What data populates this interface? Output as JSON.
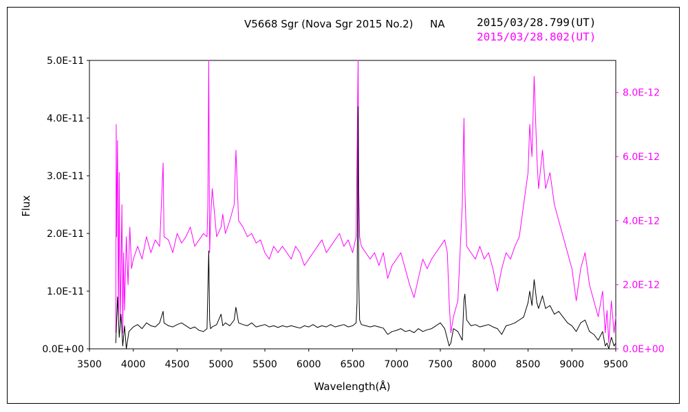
{
  "chart_data": {
    "type": "line",
    "title": "V5668 Sgr (Nova Sgr 2015 No.2)",
    "subtitle": "NA",
    "xlabel": "Wavelength(Å)",
    "ylabel": "Flux",
    "xlim": [
      3500,
      9500
    ],
    "ylim_left": [
      0,
      5e-11
    ],
    "ylim_right": [
      0,
      9e-12
    ],
    "x_ticks": [
      "3500",
      "4000",
      "4500",
      "5000",
      "5500",
      "6000",
      "6500",
      "7000",
      "7500",
      "8000",
      "8500",
      "9000",
      "9500"
    ],
    "y_ticks_left": [
      "0.0E+00",
      "1.0E-11",
      "2.0E-11",
      "3.0E-11",
      "4.0E-11",
      "5.0E-11"
    ],
    "y_ticks_right": [
      "0.0E+00",
      "2.0E-12",
      "4.0E-12",
      "6.0E-12",
      "8.0E-12"
    ],
    "grid": false,
    "legend_placement": "top-right",
    "series": [
      {
        "name": "2015/03/28.799(UT)",
        "axis": "left",
        "color": "#000000",
        "x": [
          3800,
          3820,
          3840,
          3860,
          3880,
          3900,
          3920,
          3950,
          4000,
          4050,
          4100,
          4150,
          4200,
          4250,
          4300,
          4340,
          4350,
          4400,
          4450,
          4500,
          4550,
          4600,
          4650,
          4700,
          4750,
          4800,
          4840,
          4860,
          4870,
          4880,
          4900,
          4950,
          5000,
          5020,
          5050,
          5100,
          5150,
          5170,
          5200,
          5250,
          5300,
          5350,
          5400,
          5450,
          5500,
          5550,
          5600,
          5650,
          5700,
          5750,
          5800,
          5850,
          5900,
          5950,
          6000,
          6050,
          6100,
          6150,
          6200,
          6250,
          6300,
          6350,
          6400,
          6450,
          6500,
          6540,
          6550,
          6563,
          6570,
          6580,
          6600,
          6650,
          6700,
          6750,
          6800,
          6850,
          6900,
          6950,
          7000,
          7050,
          7100,
          7150,
          7200,
          7250,
          7300,
          7350,
          7400,
          7450,
          7500,
          7550,
          7600,
          7620,
          7650,
          7700,
          7750,
          7770,
          7780,
          7800,
          7850,
          7900,
          7950,
          8000,
          8050,
          8100,
          8150,
          8200,
          8250,
          8300,
          8350,
          8400,
          8450,
          8500,
          8520,
          8545,
          8570,
          8600,
          8620,
          8665,
          8700,
          8750,
          8800,
          8850,
          8900,
          8950,
          9000,
          9050,
          9100,
          9150,
          9200,
          9250,
          9300,
          9350,
          9380,
          9400,
          9420,
          9450,
          9480,
          9500
        ],
        "y": [
          1e-12,
          9e-12,
          2e-12,
          6e-12,
          5e-13,
          4e-12,
          0.0,
          3e-12,
          3.8e-12,
          4.2e-12,
          3.5e-12,
          4.5e-12,
          4e-12,
          3.8e-12,
          4.5e-12,
          6.5e-12,
          4.5e-12,
          4e-12,
          3.8e-12,
          4.2e-12,
          4.5e-12,
          4e-12,
          3.5e-12,
          3.8e-12,
          3.2e-12,
          3e-12,
          3.5e-12,
          1.7e-11,
          5e-12,
          3.5e-12,
          3.8e-12,
          4.2e-12,
          6e-12,
          4e-12,
          4.5e-12,
          4e-12,
          5e-12,
          7.2e-12,
          4.5e-12,
          4.2e-12,
          4e-12,
          4.5e-12,
          3.8e-12,
          4e-12,
          4.2e-12,
          3.8e-12,
          4e-12,
          3.7e-12,
          4e-12,
          3.8e-12,
          4e-12,
          3.8e-12,
          3.6e-12,
          4e-12,
          3.8e-12,
          4.2e-12,
          3.7e-12,
          4e-12,
          3.8e-12,
          4.2e-12,
          3.8e-12,
          4e-12,
          4.2e-12,
          3.8e-12,
          4e-12,
          4.5e-12,
          8e-12,
          4.2e-11,
          1.2e-11,
          5e-12,
          4.2e-12,
          4e-12,
          3.8e-12,
          4e-12,
          3.8e-12,
          3.6e-12,
          2.5e-12,
          3e-12,
          3.2e-12,
          3.5e-12,
          3e-12,
          3.2e-12,
          2.8e-12,
          3.5e-12,
          3e-12,
          3.3e-12,
          3.5e-12,
          4e-12,
          4.5e-12,
          3.5e-12,
          5e-13,
          1e-12,
          3.5e-12,
          3e-12,
          1.5e-12,
          8.5e-12,
          9.5e-12,
          5e-12,
          4e-12,
          4.2e-12,
          3.8e-12,
          4e-12,
          4.2e-12,
          3.8e-12,
          3.5e-12,
          2.5e-12,
          4e-12,
          4.2e-12,
          4.5e-12,
          5e-12,
          5.5e-12,
          8e-12,
          1e-11,
          7.5e-12,
          1.2e-11,
          8e-12,
          7e-12,
          9.2e-12,
          7e-12,
          7.5e-12,
          6e-12,
          6.5e-12,
          5.5e-12,
          4.5e-12,
          4e-12,
          3e-12,
          4.5e-12,
          5e-12,
          3e-12,
          2.5e-12,
          1.5e-12,
          3e-12,
          5e-13,
          1e-12,
          0.0,
          2e-12,
          5e-13,
          1e-12
        ]
      },
      {
        "name": "2015/03/28.802(UT)",
        "axis": "right",
        "color": "#ff00ff",
        "x": [
          3800,
          3805,
          3810,
          3820,
          3830,
          3840,
          3850,
          3860,
          3870,
          3880,
          3890,
          3900,
          3920,
          3940,
          3960,
          3980,
          4000,
          4050,
          4100,
          4150,
          4200,
          4250,
          4300,
          4340,
          4350,
          4400,
          4450,
          4500,
          4550,
          4600,
          4650,
          4700,
          4750,
          4800,
          4840,
          4850,
          4860,
          4870,
          4880,
          4900,
          4950,
          5000,
          5020,
          5050,
          5100,
          5150,
          5170,
          5200,
          5250,
          5300,
          5350,
          5400,
          5450,
          5500,
          5550,
          5600,
          5650,
          5700,
          5750,
          5800,
          5850,
          5900,
          5950,
          6000,
          6050,
          6100,
          6150,
          6200,
          6250,
          6300,
          6350,
          6400,
          6450,
          6500,
          6540,
          6550,
          6563,
          6570,
          6580,
          6600,
          6650,
          6700,
          6750,
          6800,
          6850,
          6900,
          6950,
          7000,
          7050,
          7100,
          7150,
          7200,
          7250,
          7300,
          7350,
          7400,
          7450,
          7500,
          7550,
          7580,
          7600,
          7620,
          7650,
          7700,
          7750,
          7770,
          7780,
          7800,
          7850,
          7900,
          7950,
          8000,
          8050,
          8100,
          8150,
          8200,
          8250,
          8300,
          8350,
          8400,
          8450,
          8500,
          8520,
          8545,
          8570,
          8600,
          8620,
          8665,
          8700,
          8750,
          8800,
          8850,
          8900,
          8950,
          9000,
          9050,
          9100,
          9150,
          9200,
          9250,
          9300,
          9350,
          9380,
          9400,
          9420,
          9450,
          9480,
          9500
        ],
        "y": [
          5e-13,
          7e-12,
          3.5e-12,
          6.5e-12,
          1e-12,
          5.5e-12,
          8e-13,
          2.5e-12,
          4.5e-12,
          5e-13,
          3e-12,
          1.2e-12,
          3.5e-12,
          2e-12,
          3.8e-12,
          2.5e-12,
          2.8e-12,
          3.2e-12,
          2.8e-12,
          3.5e-12,
          3e-12,
          3.4e-12,
          3.2e-12,
          5.8e-12,
          3.5e-12,
          3.4e-12,
          3e-12,
          3.6e-12,
          3.3e-12,
          3.5e-12,
          3.8e-12,
          3.2e-12,
          3.4e-12,
          3.6e-12,
          3.5e-12,
          4.5e-12,
          9e-12,
          3e-12,
          4e-12,
          5e-12,
          3.5e-12,
          3.8e-12,
          4.2e-12,
          3.6e-12,
          4e-12,
          4.5e-12,
          6.2e-12,
          4e-12,
          3.8e-12,
          3.5e-12,
          3.6e-12,
          3.3e-12,
          3.4e-12,
          3e-12,
          2.8e-12,
          3.2e-12,
          3e-12,
          3.2e-12,
          3e-12,
          2.8e-12,
          3.2e-12,
          3e-12,
          2.6e-12,
          2.8e-12,
          3e-12,
          3.2e-12,
          3.4e-12,
          3e-12,
          3.2e-12,
          3.4e-12,
          3.6e-12,
          3.2e-12,
          3.4e-12,
          3e-12,
          3.5e-12,
          6e-12,
          9e-12,
          5e-12,
          3.5e-12,
          3.2e-12,
          3e-12,
          2.8e-12,
          3e-12,
          2.6e-12,
          3e-12,
          2.2e-12,
          2.6e-12,
          2.8e-12,
          3e-12,
          2.5e-12,
          2e-12,
          1.6e-12,
          2.2e-12,
          2.8e-12,
          2.5e-12,
          2.8e-12,
          3e-12,
          3.2e-12,
          3.4e-12,
          3e-12,
          1.5e-12,
          5e-13,
          1e-12,
          1.5e-12,
          4.5e-12,
          7.2e-12,
          5e-12,
          3.2e-12,
          3e-12,
          2.8e-12,
          3.2e-12,
          2.8e-12,
          3e-12,
          2.5e-12,
          1.8e-12,
          2.5e-12,
          3e-12,
          2.8e-12,
          3.2e-12,
          3.5e-12,
          4.5e-12,
          5.5e-12,
          7e-12,
          6e-12,
          8.5e-12,
          6e-12,
          5e-12,
          6.2e-12,
          5e-12,
          5.5e-12,
          4.5e-12,
          4e-12,
          3.5e-12,
          3e-12,
          2.5e-12,
          1.5e-12,
          2.5e-12,
          3e-12,
          2e-12,
          1.5e-12,
          1e-12,
          1.8e-12,
          5e-13,
          1.2e-12,
          2e-13,
          1.5e-12,
          5e-13,
          1e-12
        ]
      }
    ]
  },
  "colors": {
    "series1": "#000000",
    "series2": "#ff00ff",
    "axis": "#000000"
  }
}
